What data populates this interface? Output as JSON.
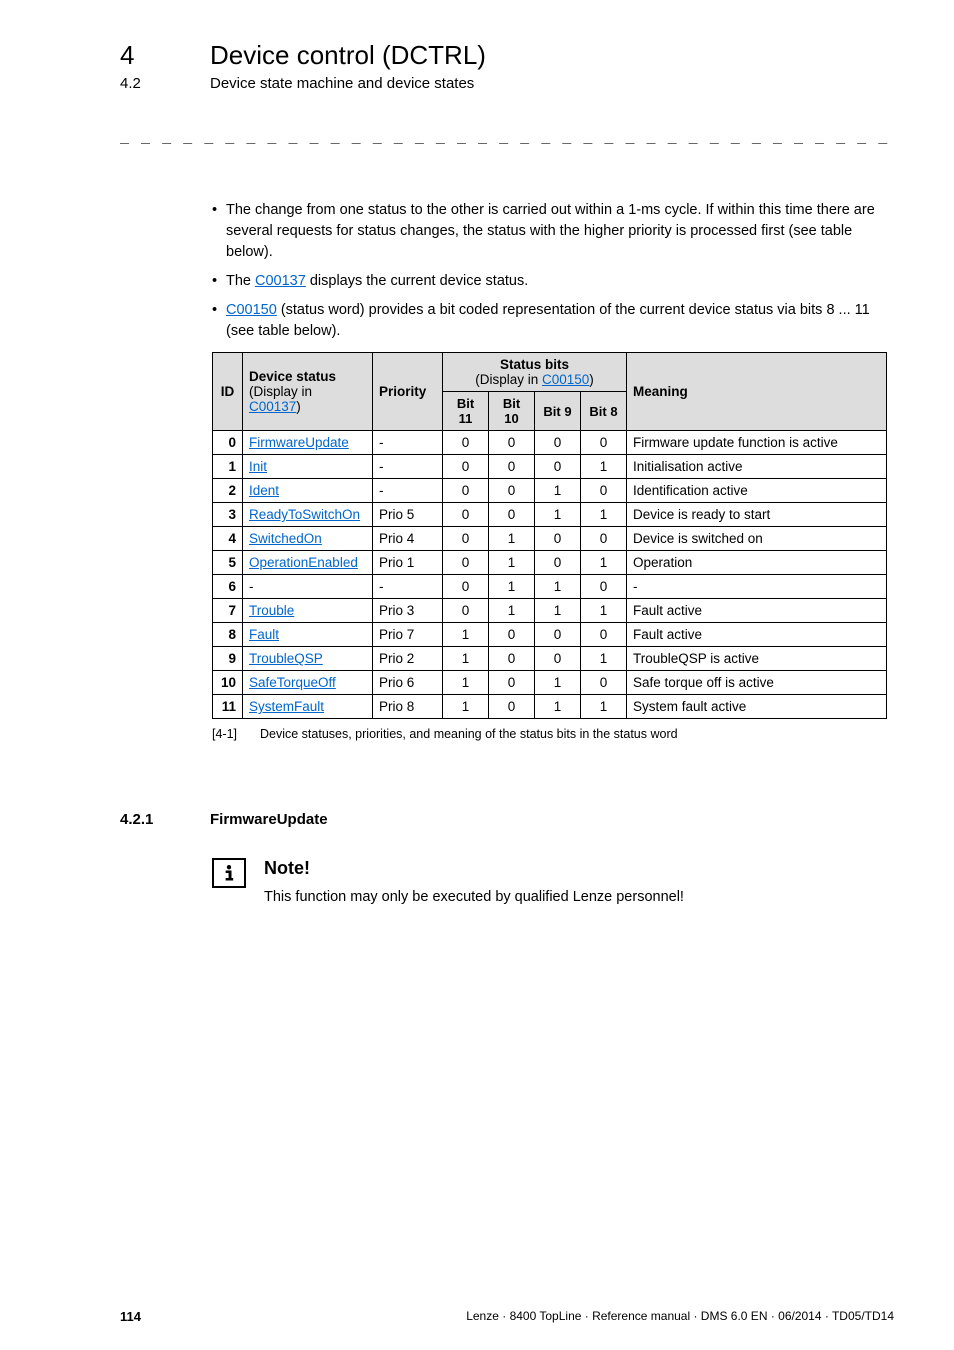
{
  "header": {
    "chapter_num": "4",
    "chapter_title": "Device control (DCTRL)",
    "section_num": "4.2",
    "section_title": "Device state machine and device states"
  },
  "dashes": "_ _ _ _ _ _ _ _ _ _ _ _ _ _ _ _ _ _ _ _ _ _ _ _ _ _ _ _ _ _ _ _ _ _ _ _ _ _ _ _ _ _ _ _ _ _ _ _ _ _ _ _ _ _ _ _ _ _ _ _ _ _ _ _",
  "bullets": {
    "b1": "The change from one status to the other is carried out within a 1-ms cycle. If within this time there are several requests for status changes, the status with the higher priority is processed first (see table below).",
    "b2_pre": "The ",
    "b2_link": "C00137",
    "b2_post": " displays the current device status.",
    "b3_link": "C00150",
    "b3_post": " (status word) provides a bit coded representation of the current device status via bits 8 ... 11 (see table below)."
  },
  "table": {
    "head": {
      "id": "ID",
      "device_status": "Device status",
      "ds_sub_pre": "(Display in ",
      "ds_sub_link": "C00137",
      "ds_sub_post": ")",
      "priority": "Priority",
      "status_bits": "Status bits",
      "sb_sub_pre": "(Display in ",
      "sb_sub_link": "C00150",
      "sb_sub_post": ")",
      "meaning": "Meaning",
      "bit11": "Bit 11",
      "bit10": "Bit 10",
      "bit9": "Bit 9",
      "bit8": "Bit 8"
    },
    "rows": [
      {
        "id": "0",
        "ds": "FirmwareUpdate",
        "link": true,
        "pr": "-",
        "b11": "0",
        "b10": "0",
        "b9": "0",
        "b8": "0",
        "mean": "Firmware update function is active"
      },
      {
        "id": "1",
        "ds": "Init",
        "link": true,
        "pr": "-",
        "b11": "0",
        "b10": "0",
        "b9": "0",
        "b8": "1",
        "mean": "Initialisation active"
      },
      {
        "id": "2",
        "ds": "Ident",
        "link": true,
        "pr": "-",
        "b11": "0",
        "b10": "0",
        "b9": "1",
        "b8": "0",
        "mean": "Identification active"
      },
      {
        "id": "3",
        "ds": "ReadyToSwitchOn",
        "link": true,
        "pr": "Prio 5",
        "b11": "0",
        "b10": "0",
        "b9": "1",
        "b8": "1",
        "mean": "Device is ready to start"
      },
      {
        "id": "4",
        "ds": "SwitchedOn",
        "link": true,
        "pr": "Prio 4",
        "b11": "0",
        "b10": "1",
        "b9": "0",
        "b8": "0",
        "mean": "Device is switched on"
      },
      {
        "id": "5",
        "ds": "OperationEnabled",
        "link": true,
        "pr": "Prio 1",
        "b11": "0",
        "b10": "1",
        "b9": "0",
        "b8": "1",
        "mean": "Operation"
      },
      {
        "id": "6",
        "ds": "-",
        "link": false,
        "pr": "-",
        "b11": "0",
        "b10": "1",
        "b9": "1",
        "b8": "0",
        "mean": "-"
      },
      {
        "id": "7",
        "ds": "Trouble",
        "link": true,
        "pr": "Prio 3",
        "b11": "0",
        "b10": "1",
        "b9": "1",
        "b8": "1",
        "mean": "Fault active"
      },
      {
        "id": "8",
        "ds": "Fault",
        "link": true,
        "pr": "Prio 7",
        "b11": "1",
        "b10": "0",
        "b9": "0",
        "b8": "0",
        "mean": "Fault active"
      },
      {
        "id": "9",
        "ds": "TroubleQSP",
        "link": true,
        "pr": "Prio 2",
        "b11": "1",
        "b10": "0",
        "b9": "0",
        "b8": "1",
        "mean": "TroubleQSP is active"
      },
      {
        "id": "10",
        "ds": "SafeTorqueOff",
        "link": true,
        "pr": "Prio 6",
        "b11": "1",
        "b10": "0",
        "b9": "1",
        "b8": "0",
        "mean": "Safe torque off is active"
      },
      {
        "id": "11",
        "ds": "SystemFault",
        "link": true,
        "pr": "Prio 8",
        "b11": "1",
        "b10": "0",
        "b9": "1",
        "b8": "1",
        "mean": "System fault active"
      }
    ]
  },
  "caption": {
    "tag": "[4-1]",
    "text": "Device statuses, priorities, and meaning of the status bits in the status word"
  },
  "subsection": {
    "num": "4.2.1",
    "title": "FirmwareUpdate"
  },
  "note": {
    "heading": "Note!",
    "text": "This function may only be executed by qualified Lenze personnel!"
  },
  "footer": {
    "page": "114",
    "info": "Lenze · 8400 TopLine · Reference manual · DMS 6.0 EN · 06/2014 · TD05/TD14"
  },
  "style": {
    "link_color": "#0066cc",
    "header_bg": "#dddddd"
  }
}
